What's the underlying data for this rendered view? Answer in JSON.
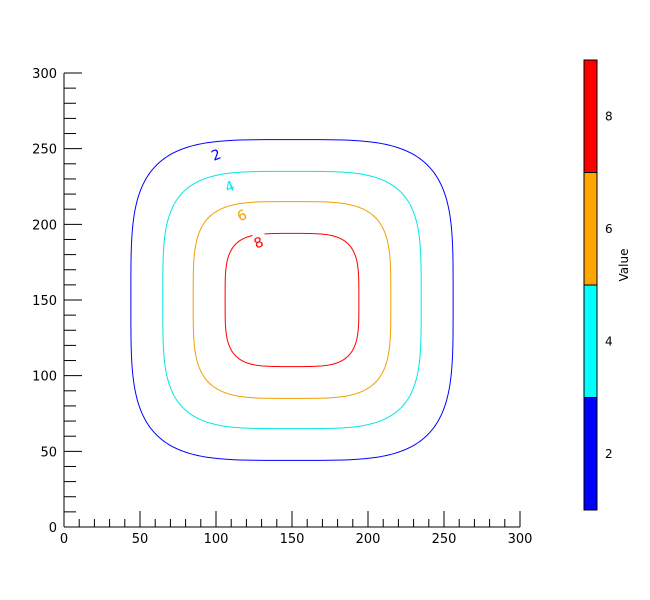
{
  "chart_data": {
    "type": "contour",
    "xlim": [
      0,
      300
    ],
    "ylim": [
      0,
      300
    ],
    "x_ticks": [
      0,
      50,
      100,
      150,
      200,
      250,
      300
    ],
    "y_ticks": [
      0,
      50,
      100,
      150,
      200,
      250,
      300
    ],
    "x_minor_step": 10,
    "y_minor_step": 10,
    "grid": false,
    "center": [
      150,
      150
    ],
    "levels": [
      {
        "value": 2,
        "label": "2",
        "color": "#0000ff",
        "half_width": 106,
        "label_x": 100,
        "label_y": 246
      },
      {
        "value": 4,
        "label": "4",
        "color": "#00e5e5",
        "half_width": 85,
        "label_x": 109,
        "label_y": 225
      },
      {
        "value": 6,
        "label": "6",
        "color": "#f0a000",
        "half_width": 65,
        "label_x": 117,
        "label_y": 206
      },
      {
        "value": 8,
        "label": "8",
        "color": "#ff0000",
        "half_width": 44,
        "label_x": 128,
        "label_y": 188
      }
    ],
    "colorbar": {
      "label": "Value",
      "bands": [
        {
          "from": 1,
          "to": 3,
          "color": "#0000ff"
        },
        {
          "from": 3,
          "to": 5,
          "color": "#00ffff"
        },
        {
          "from": 5,
          "to": 7,
          "color": "#ffa500"
        },
        {
          "from": 7,
          "to": 9,
          "color": "#ff0000"
        }
      ],
      "ticks": [
        {
          "value": 2,
          "label": "2"
        },
        {
          "value": 4,
          "label": "4"
        },
        {
          "value": 6,
          "label": "6"
        },
        {
          "value": 8,
          "label": "8"
        }
      ]
    }
  }
}
